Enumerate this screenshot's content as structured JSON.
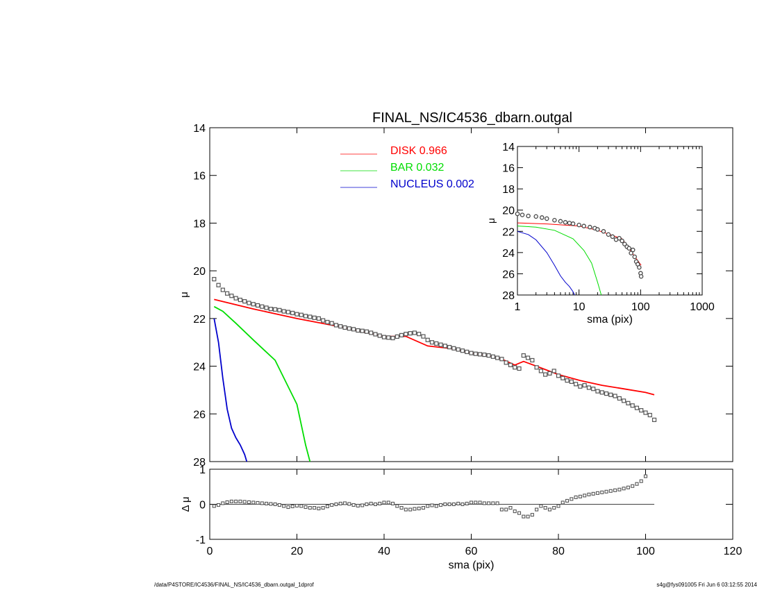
{
  "chart_data": [
    {
      "id": "main",
      "type": "line",
      "title": "FINAL_NS/IC4536_dbarn.outgal",
      "xlabel": "",
      "ylabel": "μ",
      "xlim": [
        0,
        120
      ],
      "ylim": [
        28,
        14
      ],
      "x_ticks": [
        0,
        20,
        40,
        60,
        80,
        100,
        120
      ],
      "y_ticks": [
        14,
        16,
        18,
        20,
        22,
        24,
        26,
        28
      ],
      "legend_placement": "top-center",
      "legend": [
        {
          "label": "DISK",
          "value": "0.966",
          "color": "#ff0000"
        },
        {
          "label": "BAR",
          "value": "0.032",
          "color": "#00dd00"
        },
        {
          "label": "NUCLEUS",
          "value": "0.002",
          "color": "#0000cc"
        }
      ],
      "series": [
        {
          "name": "DISK",
          "kind": "line",
          "color": "#ff0000",
          "x": [
            1,
            10,
            20,
            30,
            40,
            45,
            50,
            55,
            60,
            65,
            67,
            70,
            72,
            75,
            80,
            85,
            90,
            95,
            100,
            102
          ],
          "y": [
            21.2,
            21.6,
            22.0,
            22.35,
            22.75,
            22.75,
            23.15,
            23.25,
            23.45,
            23.6,
            23.7,
            23.95,
            23.8,
            24.0,
            24.35,
            24.6,
            24.8,
            24.95,
            25.1,
            25.2
          ]
        },
        {
          "name": "BAR",
          "kind": "line",
          "color": "#00dd00",
          "x": [
            1,
            3,
            6,
            10,
            15,
            20,
            22,
            23
          ],
          "y": [
            21.5,
            21.7,
            22.2,
            22.9,
            23.75,
            25.6,
            27.3,
            28.0
          ]
        },
        {
          "name": "NUCLEUS",
          "kind": "line",
          "color": "#0000cc",
          "x": [
            1,
            2,
            3,
            4,
            5,
            6,
            7,
            8,
            8.5
          ],
          "y": [
            22.0,
            23.0,
            24.5,
            25.8,
            26.6,
            27.0,
            27.3,
            27.7,
            28.0
          ]
        },
        {
          "name": "DATA",
          "kind": "points",
          "color": "#555555",
          "x": [
            1,
            2,
            3,
            4,
            5,
            6,
            7,
            8,
            9,
            10,
            11,
            12,
            13,
            14,
            15,
            16,
            17,
            18,
            19,
            20,
            21,
            22,
            23,
            24,
            25,
            26,
            27,
            28,
            29,
            30,
            31,
            32,
            33,
            34,
            35,
            36,
            37,
            38,
            39,
            40,
            41,
            42,
            43,
            44,
            45,
            46,
            47,
            48,
            49,
            50,
            51,
            52,
            53,
            54,
            55,
            56,
            57,
            58,
            59,
            60,
            61,
            62,
            63,
            64,
            65,
            66,
            67,
            68,
            69,
            70,
            71,
            72,
            73,
            74,
            75,
            76,
            77,
            78,
            79,
            80,
            81,
            82,
            83,
            84,
            85,
            86,
            87,
            88,
            89,
            90,
            91,
            92,
            93,
            94,
            95,
            96,
            97,
            98,
            99,
            100,
            101,
            102
          ],
          "y": [
            20.35,
            20.6,
            20.8,
            20.95,
            21.05,
            21.15,
            21.22,
            21.28,
            21.35,
            21.4,
            21.45,
            21.5,
            21.55,
            21.6,
            21.62,
            21.65,
            21.7,
            21.73,
            21.77,
            21.82,
            21.85,
            21.9,
            21.93,
            21.97,
            22.0,
            22.08,
            22.15,
            22.2,
            22.28,
            22.33,
            22.38,
            22.42,
            22.45,
            22.5,
            22.52,
            22.55,
            22.6,
            22.66,
            22.72,
            22.78,
            22.8,
            22.82,
            22.76,
            22.7,
            22.65,
            22.62,
            22.6,
            22.65,
            22.75,
            22.9,
            23.0,
            23.05,
            23.1,
            23.15,
            23.2,
            23.25,
            23.3,
            23.35,
            23.4,
            23.45,
            23.48,
            23.5,
            23.52,
            23.55,
            23.6,
            23.65,
            23.7,
            23.85,
            23.95,
            24.05,
            24.1,
            23.55,
            23.65,
            23.75,
            24.05,
            24.2,
            24.35,
            24.3,
            24.2,
            24.4,
            24.5,
            24.6,
            24.65,
            24.75,
            24.85,
            24.8,
            24.9,
            24.95,
            25.05,
            25.1,
            25.15,
            25.2,
            25.25,
            25.35,
            25.45,
            25.55,
            25.65,
            25.75,
            25.85,
            25.95,
            26.05,
            26.25
          ]
        }
      ]
    },
    {
      "id": "residual",
      "type": "scatter",
      "xlabel": "sma (pix)",
      "ylabel": "Δ μ",
      "xlim": [
        0,
        120
      ],
      "ylim": [
        -1,
        1
      ],
      "x_ticks": [
        0,
        20,
        40,
        60,
        80,
        100,
        120
      ],
      "y_ticks": [
        1,
        0,
        -1
      ],
      "zero_line": {
        "x": [
          1,
          102
        ],
        "y": 0
      },
      "series": [
        {
          "name": "DATA",
          "kind": "points",
          "color": "#555555",
          "x": [
            1,
            2,
            3,
            4,
            5,
            6,
            7,
            8,
            9,
            10,
            11,
            12,
            13,
            14,
            15,
            16,
            17,
            18,
            19,
            20,
            21,
            22,
            23,
            24,
            25,
            26,
            27,
            28,
            29,
            30,
            31,
            32,
            33,
            34,
            35,
            36,
            37,
            38,
            39,
            40,
            41,
            42,
            43,
            44,
            45,
            46,
            47,
            48,
            49,
            50,
            51,
            52,
            53,
            54,
            55,
            56,
            57,
            58,
            59,
            60,
            61,
            62,
            63,
            64,
            65,
            66,
            67,
            68,
            69,
            70,
            71,
            72,
            73,
            74,
            75,
            76,
            77,
            78,
            79,
            80,
            81,
            82,
            83,
            84,
            85,
            86,
            87,
            88,
            89,
            90,
            91,
            92,
            93,
            94,
            95,
            96,
            97,
            98,
            99,
            100
          ],
          "y": [
            -0.05,
            -0.02,
            0.03,
            0.06,
            0.08,
            0.08,
            0.08,
            0.07,
            0.06,
            0.05,
            0.04,
            0.03,
            0.02,
            0.01,
            0.0,
            -0.02,
            -0.05,
            -0.08,
            -0.06,
            -0.04,
            -0.05,
            -0.08,
            -0.1,
            -0.1,
            -0.12,
            -0.1,
            -0.06,
            -0.02,
            0.0,
            0.02,
            0.03,
            0.01,
            -0.02,
            -0.04,
            -0.03,
            0.0,
            0.02,
            0.0,
            0.02,
            0.05,
            0.05,
            0.02,
            -0.05,
            -0.1,
            -0.15,
            -0.15,
            -0.13,
            -0.12,
            -0.1,
            -0.05,
            -0.03,
            -0.05,
            -0.02,
            0.0,
            0.0,
            0.0,
            0.02,
            0.0,
            0.02,
            0.05,
            0.05,
            0.05,
            0.03,
            0.03,
            0.03,
            0.03,
            -0.15,
            -0.15,
            -0.1,
            -0.2,
            -0.25,
            -0.35,
            -0.35,
            -0.3,
            -0.15,
            -0.05,
            -0.1,
            -0.15,
            -0.1,
            -0.05,
            0.05,
            0.1,
            0.15,
            0.2,
            0.22,
            0.25,
            0.28,
            0.3,
            0.32,
            0.34,
            0.36,
            0.38,
            0.4,
            0.42,
            0.45,
            0.48,
            0.52,
            0.58,
            0.66,
            0.8
          ]
        }
      ]
    },
    {
      "id": "inset",
      "type": "line",
      "xlabel": "sma (pix)",
      "ylabel": "μ",
      "x_scale": "log",
      "xlim": [
        1,
        1000
      ],
      "ylim": [
        28,
        14
      ],
      "x_ticks": [
        1,
        10,
        100,
        1000
      ],
      "y_ticks": [
        14,
        16,
        18,
        20,
        22,
        24,
        26,
        28
      ],
      "series": [
        {
          "name": "DISK",
          "kind": "line",
          "color": "#ff0000",
          "x": [
            1,
            3,
            10,
            20,
            50,
            102
          ],
          "y": [
            21.2,
            21.3,
            21.5,
            21.9,
            22.7,
            25.2
          ]
        },
        {
          "name": "BAR",
          "kind": "line",
          "color": "#00dd00",
          "x": [
            1,
            2,
            4,
            8,
            12,
            16,
            20,
            23
          ],
          "y": [
            21.5,
            21.6,
            21.9,
            22.7,
            23.8,
            25.0,
            26.8,
            28.0
          ]
        },
        {
          "name": "NUCLEUS",
          "kind": "line",
          "color": "#0000cc",
          "x": [
            1,
            1.5,
            2,
            3,
            4,
            5,
            6,
            7,
            8,
            8.5
          ],
          "y": [
            22.0,
            22.3,
            22.8,
            24.0,
            25.2,
            26.2,
            26.8,
            27.2,
            27.7,
            28.0
          ]
        },
        {
          "name": "DATA",
          "kind": "points",
          "color": "#555555",
          "x": [
            1,
            1.2,
            1.5,
            2,
            2.5,
            3,
            4,
            5,
            6,
            7,
            8,
            10,
            12,
            15,
            18,
            20,
            25,
            30,
            35,
            40,
            45,
            50,
            55,
            60,
            65,
            70,
            75,
            80,
            85,
            90,
            95,
            100,
            102
          ],
          "y": [
            20.35,
            20.45,
            20.55,
            20.6,
            20.7,
            20.8,
            20.95,
            21.05,
            21.15,
            21.22,
            21.28,
            21.4,
            21.5,
            21.6,
            21.7,
            21.82,
            22.0,
            22.3,
            22.5,
            22.78,
            22.65,
            22.9,
            23.2,
            23.45,
            23.6,
            24.05,
            23.75,
            24.4,
            24.85,
            25.1,
            25.4,
            25.95,
            26.25
          ]
        }
      ]
    }
  ],
  "footer": {
    "left": "/data/P4STORE/IC4536/FINAL_NS/IC4536_dbarn.outgal_1dprof",
    "right": "s4g@fys091005  Fri Jun  6 03:12:55 2014"
  }
}
